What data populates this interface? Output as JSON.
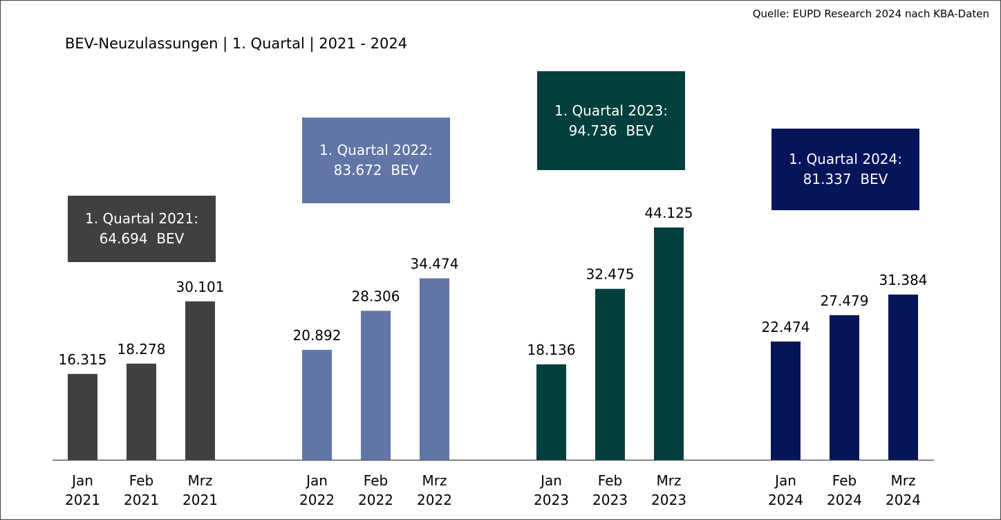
{
  "source": "Quelle: EUPD Research 2024 nach KBA-Daten",
  "chart_data": {
    "type": "bar",
    "title": "BEV-Neuzulassungen | 1. Quartal | 2021 - 2024",
    "xlabel": "",
    "ylabel": "",
    "ylim": [
      0,
      44125
    ],
    "grid": false,
    "groups": [
      {
        "year": "2021",
        "color": "#404040",
        "annotation_line1": "1. Quartal 2021:",
        "annotation_line2": "64.694  BEV",
        "categories": [
          [
            "Jan",
            "2021"
          ],
          [
            "Feb",
            "2021"
          ],
          [
            "Mrz",
            "2021"
          ]
        ],
        "values": [
          16315,
          18278,
          30101
        ],
        "labels": [
          "16.315",
          "18.278",
          "30.101"
        ]
      },
      {
        "year": "2022",
        "color": "#6175a6",
        "annotation_line1": "1. Quartal 2022:",
        "annotation_line2": "83.672  BEV",
        "categories": [
          [
            "Jan",
            "2022"
          ],
          [
            "Feb",
            "2022"
          ],
          [
            "Mrz",
            "2022"
          ]
        ],
        "values": [
          20892,
          28306,
          34474
        ],
        "labels": [
          "20.892",
          "28.306",
          "34.474"
        ]
      },
      {
        "year": "2023",
        "color": "#033f3c",
        "annotation_line1": "1. Quartal 2023:",
        "annotation_line2": "94.736  BEV",
        "categories": [
          [
            "Jan",
            "2023"
          ],
          [
            "Feb",
            "2023"
          ],
          [
            "Mrz",
            "2023"
          ]
        ],
        "values": [
          18136,
          32475,
          44125
        ],
        "labels": [
          "18.136",
          "32.475",
          "44.125"
        ]
      },
      {
        "year": "2024",
        "color": "#06145a",
        "annotation_line1": "1. Quartal 2024:",
        "annotation_line2": "81.337  BEV",
        "categories": [
          [
            "Jan",
            "2024"
          ],
          [
            "Feb",
            "2024"
          ],
          [
            "Mrz",
            "2024"
          ]
        ],
        "values": [
          22474,
          27479,
          31384
        ],
        "labels": [
          "22.474",
          "27.479",
          "31.384"
        ]
      }
    ]
  }
}
